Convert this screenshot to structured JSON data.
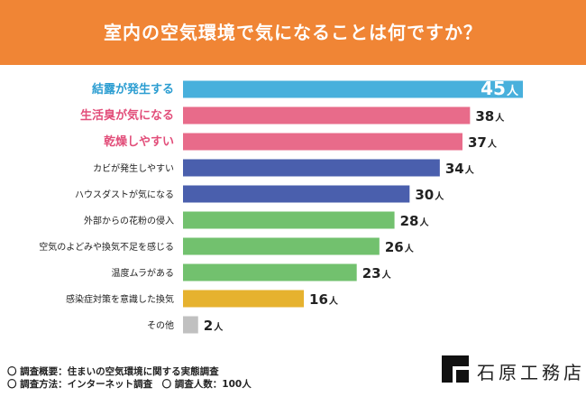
{
  "title": "室内の空気環境で気になることは何ですか？",
  "chart_data": {
    "type": "bar",
    "orientation": "horizontal",
    "unit": "人",
    "xlim": [
      0,
      45
    ],
    "categories": [
      "結露が発生する",
      "生活臭が気になる",
      "乾燥しやすい",
      "カビが発生しやすい",
      "ハウスダストが気になる",
      "外部からの花粉の侵入",
      "空気のよどみや換気不足を感じる",
      "温度ムラがある",
      "感染症対策を意識した換気",
      "その他"
    ],
    "values": [
      45,
      38,
      37,
      34,
      30,
      28,
      26,
      23,
      16,
      2
    ],
    "bar_colors": [
      "#48b0dc",
      "#e86b8a",
      "#e86b8a",
      "#4a5fad",
      "#4a5fad",
      "#72c16e",
      "#72c16e",
      "#72c16e",
      "#e6b22f",
      "#c0c0c0"
    ],
    "label_colors": [
      "#2b9dd1",
      "#e24e7a",
      "#e24e7a",
      "#222222",
      "#222222",
      "#222222",
      "#222222",
      "#222222",
      "#222222",
      "#222222"
    ]
  },
  "footer": {
    "line1": "〇 調査概要：住まいの空気環境に関する実態調査",
    "line2": "〇 調査方法：インターネット調査　〇 調査人数：100人"
  },
  "brand": {
    "name": "石原工務店",
    "logo_icon": "square-corner-logo-icon"
  }
}
